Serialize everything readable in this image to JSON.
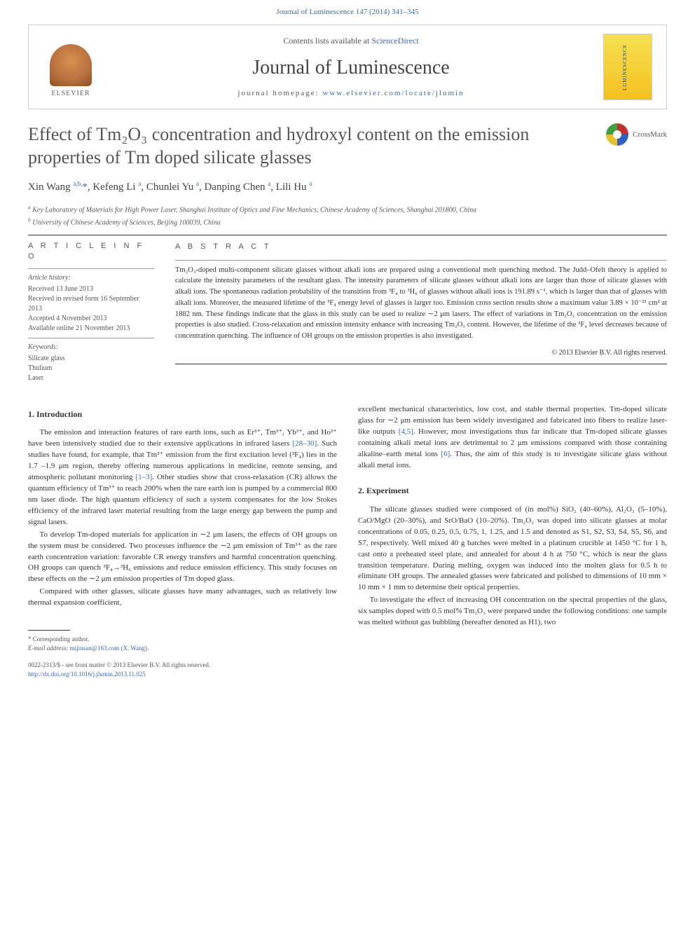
{
  "header": {
    "top_link_text": "Journal of Luminescence 147 (2014) 341–345",
    "contents_text": "Contents lists available at ",
    "contents_link": "ScienceDirect",
    "journal_name": "Journal of Luminescence",
    "homepage_label": "journal homepage: ",
    "homepage_url": "www.elsevier.com/locate/jlumin",
    "publisher": "ELSEVIER",
    "crossmark_label": "CrossMark"
  },
  "article": {
    "title": "Effect of Tm₂O₃ concentration and hydroxyl content on the emission properties of Tm doped silicate glasses",
    "authors_html": "Xin Wang <sup>a,b,</sup><span class='star'>*</span>, Kefeng Li <sup>a</sup>, Chunlei Yu <sup>a</sup>, Danping Chen <sup>a</sup>, Lili Hu <sup>a</sup>",
    "affiliations": {
      "a": "Key Laboratory of Materials for High Power Laser, Shanghai Institute of Optics and Fine Mechanics, Chinese Academy of Sciences, Shanghai 201800, China",
      "b": "University of Chinese Academy of Sciences, Beijing 100039, China"
    }
  },
  "info": {
    "heading": "A R T I C L E  I N F O",
    "history_label": "Article history:",
    "received": "Received 13 June 2013",
    "revised": "Received in revised form 16 September 2013",
    "accepted": "Accepted 4 November 2013",
    "online": "Available online 21 November 2013",
    "keywords_label": "Keywords:",
    "keywords": [
      "Silicate glass",
      "Thulium",
      "Laser"
    ]
  },
  "abstract": {
    "heading": "A B S T R A C T",
    "text": "Tm₂O₃-doped multi-component silicate glasses without alkali ions are prepared using a conventional melt quenching method. The Judd–Ofelt theory is applied to calculate the intensity parameters of the resultant glass. The intensity parameters of silicate glasses without alkali ions are larger than those of silicate glasses with alkali ions. The spontaneous radiation probability of the transition from ³F₄ to ³H₆ of glasses without alkali ions is 191.89 s⁻¹, which is larger than that of glasses with alkali ions. Moreover, the measured lifetime of the ³F₄ energy level of glasses is larger too. Emission cross section results show a maximum value 3.89 × 10⁻²¹ cm² at 1882 nm. These findings indicate that the glass in this study can be used to realize ∼2 μm lasers. The effect of variations in Tm₂O₂ concentration on the emission properties is also studied. Cross-relaxation and emission intensity enhance with increasing Tm₂O₃ content. However, the lifetime of the ³F₄ level decreases because of concentration quenching. The influence of OH groups on the emission properties is also investigated.",
    "copyright": "© 2013 Elsevier B.V. All rights reserved."
  },
  "body": {
    "col1": {
      "h1": "1.  Introduction",
      "p1": "The emission and interaction features of rare earth ions, such as Er³⁺, Tm³⁺, Yb³⁺, and Ho³⁺ have been intensively studied due to their extensive applications in infrared lasers [28–30]. Such studies have found, for example, that Tm³⁺ emission from the first excitation level (³F₄) lies in the 1.7 –1.9 μm region, thereby offering numerous applications in medicine, remote sensing, and atmospheric pollutant monitoring [1–3]. Other studies show that cross-relaxation (CR) allows the quantum efficiency of Tm³⁺ to reach 200% when the rare earth ion is pumped by a commercial 800 nm laser diode. The high quantum efficiency of such a system compensates for the low Stokes efficiency of the infrared laser material resulting from the large energy gap between the pump and signal lasers.",
      "p2": "To develop Tm-doped materials for application in ∼2 μm lasers, the effects of OH groups on the system must be considered. Two processes influence the ∼2 μm emission of Tm³⁺ as the rare earth concentration variation: favorable CR energy transfers and harmful concentration quenching. OH groups can quench ³F₄→³H₆ emissions and reduce emission efficiency. This study focuses on these effects on the ∼2 μm emission properties of Tm doped glass.",
      "p3": "Compared with other glasses, silicate glasses have many advantages, such as relatively low thermal expansion coefficient,",
      "footnote_marker": "* Corresponding author.",
      "footnote_email_label": "E-mail address: ",
      "footnote_email": "mijinsan@163.com (X. Wang).",
      "footer1": "0022-2313/$ - see front matter © 2013 Elsevier B.V. All rights reserved.",
      "footer2": "http://dx.doi.org/10.1016/j.jlumin.2013.11.025"
    },
    "col2": {
      "p1": "excellent mechanical characteristics, low cost, and stable thermal properties. Tm-doped silicate glass for ∼2 μm emission has been widely investigated and fabricated into fibers to realize laser-like outputs [4,5]. However, most investigations thus far indicate that Tm-doped silicate glasses containing alkali metal ions are detrimental to 2 μm emissions compared with those containing alkaline–earth metal ions [6]. Thus, the aim of this study is to investigate silicate glass without alkali metal ions.",
      "h2": "2.  Experiment",
      "p2": "The silicate glasses studied were composed of (in mol%) SiO₂ (40–60%), Al₂O₃ (5–10%), CaO/MgO (20–30%), and SrO/BaO (10–20%). Tm₂O₃ was doped into silicate glasses at molar concentrations of 0.05, 0.25, 0.5, 0.75, 1, 1.25, and 1.5 and denoted as S1, S2, S3, S4, S5, S6, and S7, respectively. Well mixed 40 g batches were melted in a platinum crucible at 1450 °C for 1 h, cast onto a preheated steel plate, and annealed for about 4 h at 750 °C, which is near the glass transition temperature. During melting, oxygen was induced into the molten glass for 0.5 h to eliminate OH groups. The annealed glasses were fabricated and polished to dimensions of 10 mm × 10 mm × 1 mm to determine their optical properties.",
      "p3": "To investigate the effect of increasing OH concentration on the spectral properties of the glass, six samples doped with 0.5 mol% Tm₂O₃ were prepared under the following conditions: one sample was melted without gas bubbling (hereafter denoted as H1), two"
    }
  },
  "colors": {
    "link": "#3968b1",
    "text": "#333333",
    "muted": "#555555",
    "rule": "#333333",
    "rule_thin": "#999999",
    "cover_top": "#f5e050",
    "cover_bottom": "#f5c020"
  }
}
